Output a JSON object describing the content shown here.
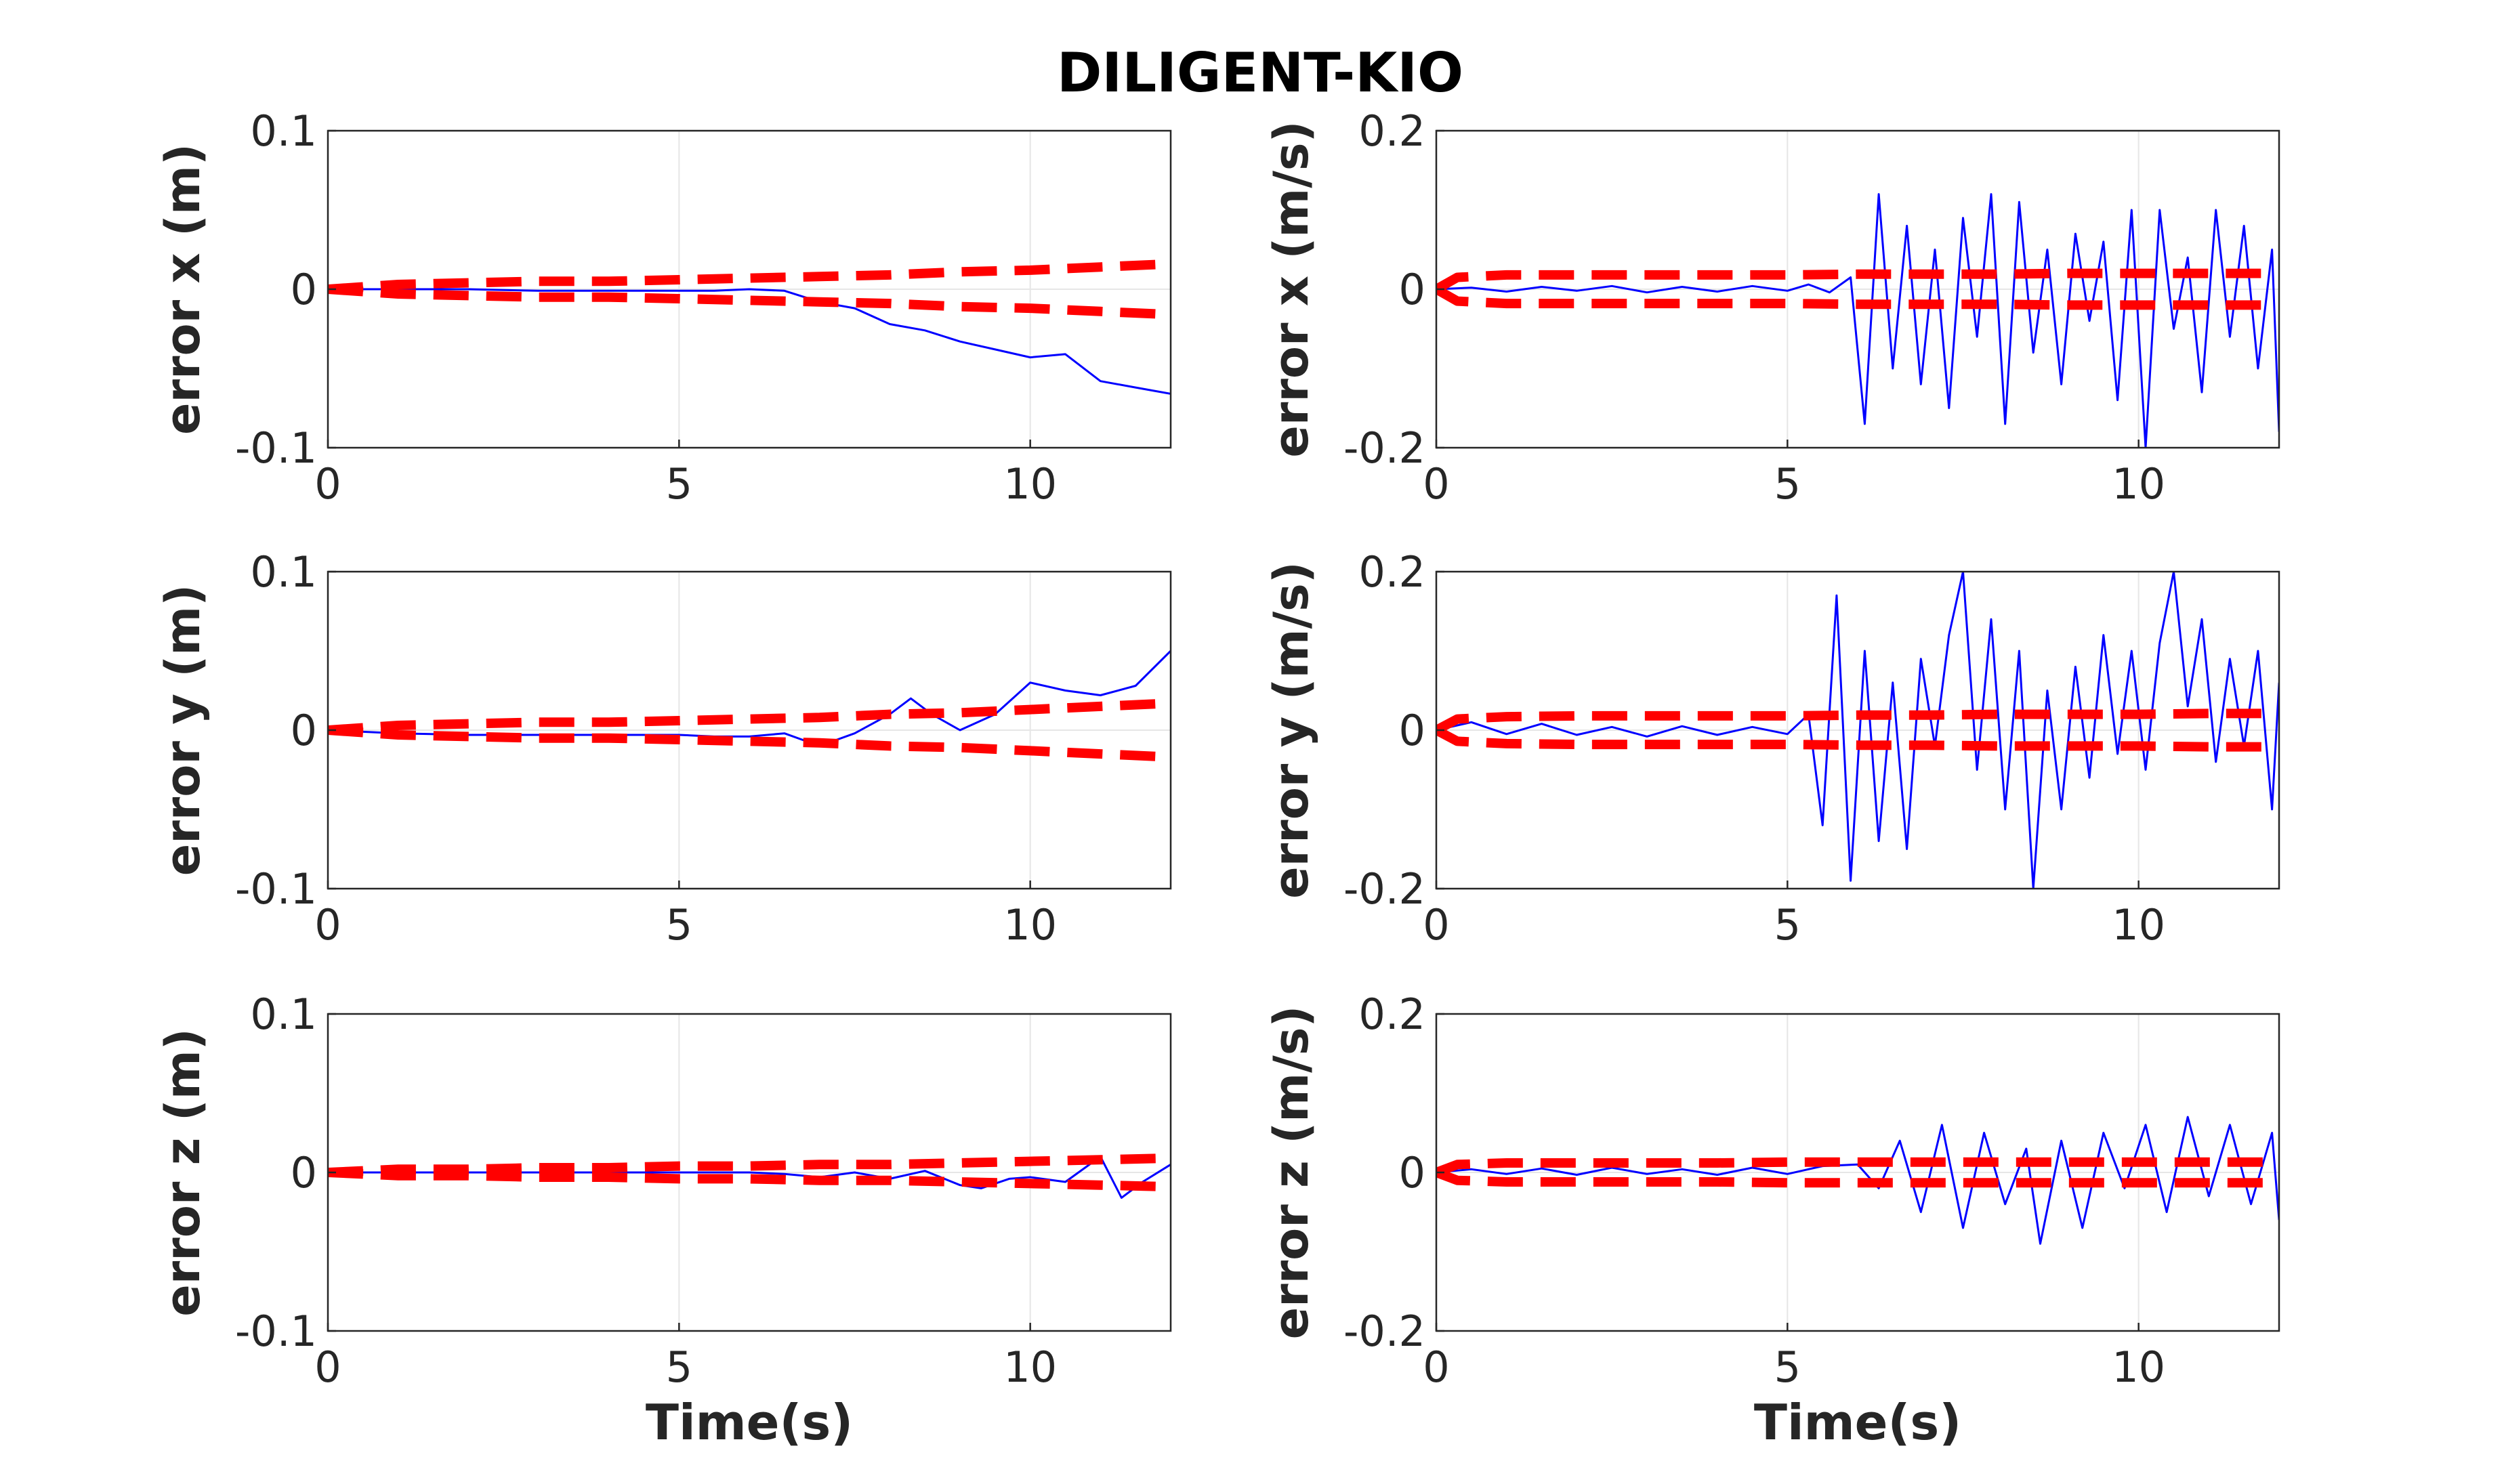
{
  "figure_title": "DILIGENT-KIO",
  "colors": {
    "error": "#0000ff",
    "bound": "#ff0000",
    "axis": "#262626",
    "grid": "#e6e6e6"
  },
  "chart_data": [
    {
      "type": "line",
      "panel": "position-x",
      "title": "",
      "xlabel": "",
      "ylabel": "error x (m)",
      "xlim": [
        0,
        12
      ],
      "ylim": [
        -0.1,
        0.1
      ],
      "x_ticks": [
        0,
        5,
        10
      ],
      "x_tick_labels": [
        "0",
        "5",
        "10"
      ],
      "y_ticks": [
        -0.1,
        0,
        0.1
      ],
      "y_tick_labels": [
        "-0.1",
        "0",
        "0.1"
      ],
      "series": [
        {
          "name": "error",
          "style": "solid",
          "x": [
            0,
            1,
            2,
            3,
            4,
            5,
            5.5,
            6,
            6.5,
            7,
            7.5,
            8,
            8.5,
            9,
            9.5,
            10,
            10.5,
            11,
            11.5,
            12
          ],
          "y": [
            0,
            0,
            0,
            -0.001,
            -0.001,
            -0.001,
            -0.001,
            0,
            -0.001,
            -0.008,
            -0.012,
            -0.022,
            -0.026,
            -0.033,
            -0.038,
            -0.043,
            -0.041,
            -0.058,
            -0.062,
            -0.066
          ]
        },
        {
          "name": "upper bound",
          "style": "dashed",
          "x": [
            0,
            1,
            2,
            3,
            4,
            5,
            6,
            7,
            8,
            9,
            10,
            11,
            12
          ],
          "y": [
            0,
            0.003,
            0.004,
            0.005,
            0.005,
            0.006,
            0.007,
            0.008,
            0.009,
            0.011,
            0.012,
            0.014,
            0.016
          ]
        },
        {
          "name": "lower bound",
          "style": "dashed",
          "x": [
            0,
            1,
            2,
            3,
            4,
            5,
            6,
            7,
            8,
            9,
            10,
            11,
            12
          ],
          "y": [
            0,
            -0.003,
            -0.004,
            -0.005,
            -0.005,
            -0.006,
            -0.007,
            -0.008,
            -0.009,
            -0.011,
            -0.012,
            -0.014,
            -0.016
          ]
        }
      ]
    },
    {
      "type": "line",
      "panel": "velocity-x",
      "title": "",
      "xlabel": "",
      "ylabel": "error x (m/s)",
      "xlim": [
        0,
        12
      ],
      "ylim": [
        -0.2,
        0.2
      ],
      "x_ticks": [
        0,
        5,
        10
      ],
      "x_tick_labels": [
        "0",
        "5",
        "10"
      ],
      "y_ticks": [
        -0.2,
        0,
        0.2
      ],
      "y_tick_labels": [
        "-0.2",
        "0",
        "0.2"
      ],
      "series": [
        {
          "name": "error",
          "style": "solid",
          "x": [
            0,
            0.5,
            1,
            1.5,
            2,
            2.5,
            3,
            3.5,
            4,
            4.5,
            5,
            5.3,
            5.6,
            5.9,
            6.1,
            6.3,
            6.5,
            6.7,
            6.9,
            7.1,
            7.3,
            7.5,
            7.7,
            7.9,
            8.1,
            8.3,
            8.5,
            8.7,
            8.9,
            9.1,
            9.3,
            9.5,
            9.7,
            9.9,
            10.1,
            10.3,
            10.5,
            10.7,
            10.9,
            11.1,
            11.3,
            11.5,
            11.7,
            11.9,
            12
          ],
          "y": [
            0,
            0.002,
            -0.003,
            0.003,
            -0.002,
            0.004,
            -0.004,
            0.003,
            -0.003,
            0.004,
            -0.002,
            0.006,
            -0.004,
            0.015,
            -0.17,
            0.12,
            -0.1,
            0.08,
            -0.12,
            0.05,
            -0.15,
            0.09,
            -0.06,
            0.12,
            -0.17,
            0.11,
            -0.08,
            0.05,
            -0.12,
            0.07,
            -0.04,
            0.06,
            -0.14,
            0.1,
            -0.2,
            0.1,
            -0.05,
            0.04,
            -0.13,
            0.1,
            -0.06,
            0.08,
            -0.1,
            0.05,
            -0.18
          ]
        },
        {
          "name": "upper bound",
          "style": "dashed",
          "x": [
            0,
            0.3,
            1,
            2,
            3,
            4,
            5,
            6,
            7,
            8,
            9,
            10,
            11,
            12
          ],
          "y": [
            0,
            0.015,
            0.018,
            0.018,
            0.018,
            0.018,
            0.018,
            0.019,
            0.019,
            0.019,
            0.02,
            0.02,
            0.02,
            0.02
          ]
        },
        {
          "name": "lower bound",
          "style": "dashed",
          "x": [
            0,
            0.3,
            1,
            2,
            3,
            4,
            5,
            6,
            7,
            8,
            9,
            10,
            11,
            12
          ],
          "y": [
            0,
            -0.015,
            -0.018,
            -0.018,
            -0.018,
            -0.018,
            -0.018,
            -0.019,
            -0.019,
            -0.019,
            -0.02,
            -0.02,
            -0.02,
            -0.02
          ]
        }
      ]
    },
    {
      "type": "line",
      "panel": "position-y",
      "title": "",
      "xlabel": "",
      "ylabel": "error y (m)",
      "xlim": [
        0,
        12
      ],
      "ylim": [
        -0.1,
        0.1
      ],
      "x_ticks": [
        0,
        5,
        10
      ],
      "x_tick_labels": [
        "0",
        "5",
        "10"
      ],
      "y_ticks": [
        -0.1,
        0,
        0.1
      ],
      "y_tick_labels": [
        "-0.1",
        "0",
        "0.1"
      ],
      "series": [
        {
          "name": "error",
          "style": "solid",
          "x": [
            0,
            1,
            2,
            3,
            4,
            5,
            5.5,
            6,
            6.5,
            7,
            7.5,
            8,
            8.3,
            8.6,
            9,
            9.5,
            10,
            10.5,
            11,
            11.5,
            12
          ],
          "y": [
            0,
            -0.002,
            -0.003,
            -0.003,
            -0.003,
            -0.003,
            -0.004,
            -0.004,
            -0.002,
            -0.01,
            -0.002,
            0.01,
            0.02,
            0.01,
            0,
            0.01,
            0.03,
            0.025,
            0.022,
            0.028,
            0.05
          ]
        },
        {
          "name": "upper bound",
          "style": "dashed",
          "x": [
            0,
            1,
            2,
            3,
            4,
            5,
            6,
            7,
            8,
            9,
            10,
            11,
            12
          ],
          "y": [
            0,
            0.003,
            0.004,
            0.005,
            0.005,
            0.006,
            0.007,
            0.008,
            0.01,
            0.011,
            0.013,
            0.015,
            0.017
          ]
        },
        {
          "name": "lower bound",
          "style": "dashed",
          "x": [
            0,
            1,
            2,
            3,
            4,
            5,
            6,
            7,
            8,
            9,
            10,
            11,
            12
          ],
          "y": [
            0,
            -0.003,
            -0.004,
            -0.005,
            -0.005,
            -0.006,
            -0.007,
            -0.008,
            -0.01,
            -0.011,
            -0.013,
            -0.015,
            -0.017
          ]
        }
      ]
    },
    {
      "type": "line",
      "panel": "velocity-y",
      "title": "",
      "xlabel": "",
      "ylabel": "error y (m/s)",
      "xlim": [
        0,
        12
      ],
      "ylim": [
        -0.2,
        0.2
      ],
      "x_ticks": [
        0,
        5,
        10
      ],
      "x_tick_labels": [
        "0",
        "5",
        "10"
      ],
      "y_ticks": [
        -0.2,
        0,
        0.2
      ],
      "y_tick_labels": [
        "-0.2",
        "0",
        "0.2"
      ],
      "series": [
        {
          "name": "error",
          "style": "solid",
          "x": [
            0,
            0.5,
            1,
            1.5,
            2,
            2.5,
            3,
            3.5,
            4,
            4.5,
            5,
            5.3,
            5.5,
            5.7,
            5.9,
            6.1,
            6.3,
            6.5,
            6.7,
            6.9,
            7.1,
            7.3,
            7.5,
            7.7,
            7.9,
            8.1,
            8.3,
            8.5,
            8.7,
            8.9,
            9.1,
            9.3,
            9.5,
            9.7,
            9.9,
            10.1,
            10.3,
            10.5,
            10.7,
            10.9,
            11.1,
            11.3,
            11.5,
            11.7,
            11.9,
            12
          ],
          "y": [
            0,
            0.01,
            -0.005,
            0.008,
            -0.006,
            0.004,
            -0.008,
            0.005,
            -0.006,
            0.004,
            -0.005,
            0.02,
            -0.12,
            0.17,
            -0.19,
            0.1,
            -0.14,
            0.06,
            -0.15,
            0.09,
            -0.02,
            0.12,
            0.2,
            -0.05,
            0.14,
            -0.1,
            0.1,
            -0.2,
            0.05,
            -0.1,
            0.08,
            -0.06,
            0.12,
            -0.03,
            0.1,
            -0.05,
            0.11,
            0.2,
            0.03,
            0.14,
            -0.04,
            0.09,
            -0.02,
            0.1,
            -0.1,
            0.06
          ]
        },
        {
          "name": "upper bound",
          "style": "dashed",
          "x": [
            0,
            0.3,
            1,
            2,
            3,
            4,
            5,
            6,
            7,
            8,
            9,
            10,
            11,
            12
          ],
          "y": [
            0,
            0.014,
            0.017,
            0.018,
            0.018,
            0.018,
            0.018,
            0.019,
            0.019,
            0.02,
            0.02,
            0.02,
            0.021,
            0.021
          ]
        },
        {
          "name": "lower bound",
          "style": "dashed",
          "x": [
            0,
            0.3,
            1,
            2,
            3,
            4,
            5,
            6,
            7,
            8,
            9,
            10,
            11,
            12
          ],
          "y": [
            0,
            -0.014,
            -0.017,
            -0.018,
            -0.018,
            -0.018,
            -0.018,
            -0.019,
            -0.019,
            -0.02,
            -0.02,
            -0.02,
            -0.021,
            -0.021
          ]
        }
      ]
    },
    {
      "type": "line",
      "panel": "position-z",
      "title": "",
      "xlabel": "Time(s)",
      "ylabel": "error z (m)",
      "xlim": [
        0,
        12
      ],
      "ylim": [
        -0.1,
        0.1
      ],
      "x_ticks": [
        0,
        5,
        10
      ],
      "x_tick_labels": [
        "0",
        "5",
        "10"
      ],
      "y_ticks": [
        -0.1,
        0,
        0.1
      ],
      "y_tick_labels": [
        "-0.1",
        "0",
        "0.1"
      ],
      "series": [
        {
          "name": "error",
          "style": "solid",
          "x": [
            0,
            1,
            2,
            3,
            4,
            5,
            6,
            6.5,
            7,
            7.5,
            8,
            8.5,
            9,
            9.3,
            9.7,
            10,
            10.5,
            11,
            11.3,
            11.6,
            12
          ],
          "y": [
            0,
            0,
            0,
            0,
            0,
            0,
            0,
            -0.001,
            -0.003,
            0,
            -0.004,
            0.001,
            -0.008,
            -0.01,
            -0.004,
            -0.003,
            -0.006,
            0.01,
            -0.016,
            -0.006,
            0.005
          ]
        },
        {
          "name": "upper bound",
          "style": "dashed",
          "x": [
            0,
            1,
            2,
            3,
            4,
            5,
            6,
            7,
            8,
            9,
            10,
            11,
            12
          ],
          "y": [
            0,
            0.002,
            0.002,
            0.003,
            0.003,
            0.004,
            0.004,
            0.005,
            0.005,
            0.006,
            0.007,
            0.008,
            0.009
          ]
        },
        {
          "name": "lower bound",
          "style": "dashed",
          "x": [
            0,
            1,
            2,
            3,
            4,
            5,
            6,
            7,
            8,
            9,
            10,
            11,
            12
          ],
          "y": [
            0,
            -0.002,
            -0.002,
            -0.003,
            -0.003,
            -0.004,
            -0.004,
            -0.005,
            -0.005,
            -0.006,
            -0.007,
            -0.008,
            -0.009
          ]
        }
      ]
    },
    {
      "type": "line",
      "panel": "velocity-z",
      "title": "",
      "xlabel": "Time(s)",
      "ylabel": "error z (m/s)",
      "xlim": [
        0,
        12
      ],
      "ylim": [
        -0.2,
        0.2
      ],
      "x_ticks": [
        0,
        5,
        10
      ],
      "x_tick_labels": [
        "0",
        "5",
        "10"
      ],
      "y_ticks": [
        -0.2,
        0,
        0.2
      ],
      "y_tick_labels": [
        "-0.2",
        "0",
        "0.2"
      ],
      "series": [
        {
          "name": "error",
          "style": "solid",
          "x": [
            0,
            0.5,
            1,
            1.5,
            2,
            2.5,
            3,
            3.5,
            4,
            4.5,
            5,
            5.5,
            6,
            6.3,
            6.6,
            6.9,
            7.2,
            7.5,
            7.8,
            8.1,
            8.4,
            8.6,
            8.9,
            9.2,
            9.5,
            9.8,
            10.1,
            10.4,
            10.7,
            11,
            11.3,
            11.6,
            11.9,
            12
          ],
          "y": [
            0,
            0.004,
            -0.002,
            0.005,
            -0.003,
            0.006,
            -0.002,
            0.004,
            -0.003,
            0.006,
            -0.002,
            0.008,
            0.01,
            -0.02,
            0.04,
            -0.05,
            0.06,
            -0.07,
            0.05,
            -0.04,
            0.03,
            -0.09,
            0.04,
            -0.07,
            0.05,
            -0.02,
            0.06,
            -0.05,
            0.07,
            -0.03,
            0.06,
            -0.04,
            0.05,
            -0.06
          ]
        },
        {
          "name": "upper bound",
          "style": "dashed",
          "x": [
            0,
            0.3,
            1,
            2,
            3,
            4,
            5,
            6,
            7,
            8,
            9,
            10,
            11,
            12
          ],
          "y": [
            0,
            0.01,
            0.012,
            0.012,
            0.012,
            0.012,
            0.013,
            0.013,
            0.013,
            0.013,
            0.013,
            0.013,
            0.013,
            0.013
          ]
        },
        {
          "name": "lower bound",
          "style": "dashed",
          "x": [
            0,
            0.3,
            1,
            2,
            3,
            4,
            5,
            6,
            7,
            8,
            9,
            10,
            11,
            12
          ],
          "y": [
            0,
            -0.01,
            -0.012,
            -0.012,
            -0.012,
            -0.012,
            -0.013,
            -0.013,
            -0.013,
            -0.013,
            -0.013,
            -0.013,
            -0.013,
            -0.013
          ]
        }
      ]
    }
  ]
}
